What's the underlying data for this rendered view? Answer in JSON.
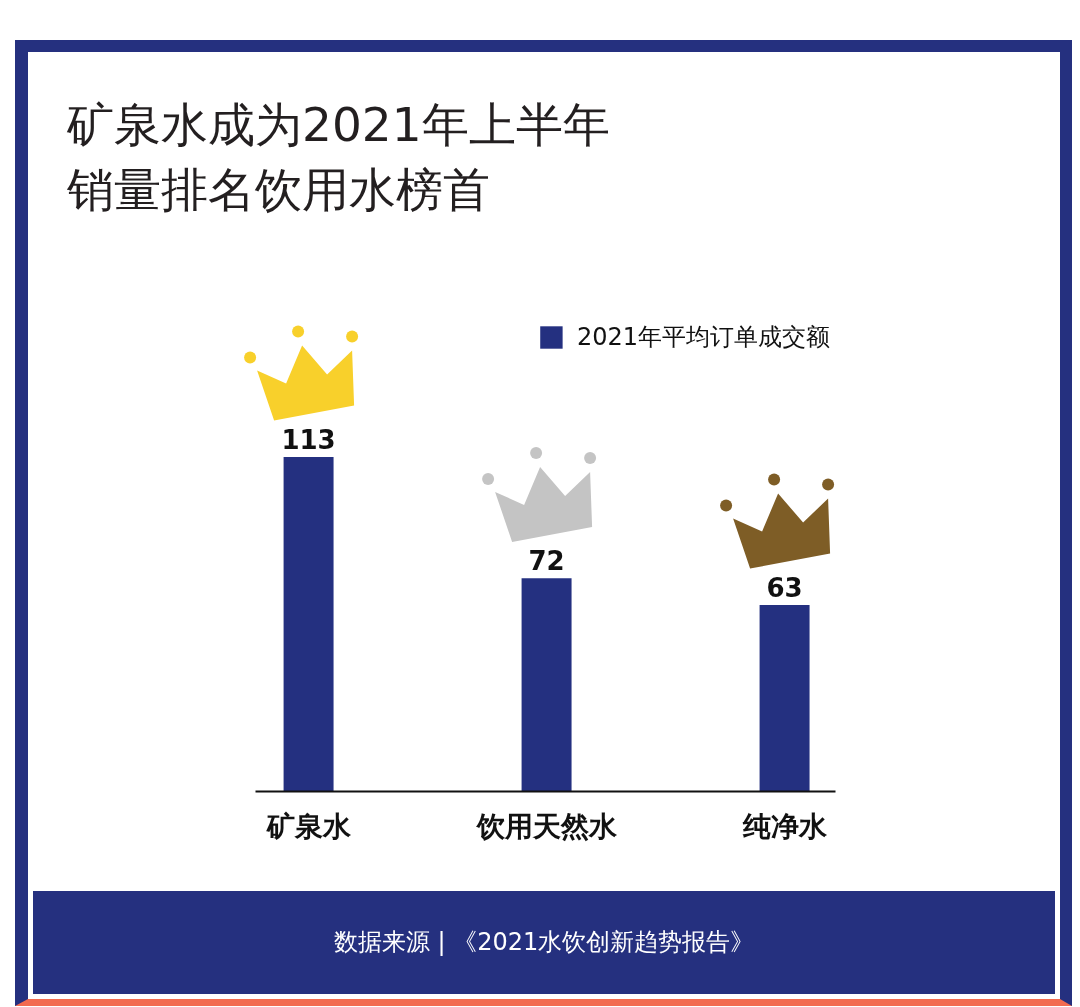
{
  "chart_data": {
    "type": "bar",
    "title": "矿泉水成为2021年上半年销量排名饮用水榜首",
    "categories": [
      "矿泉水",
      "饮用天然水",
      "纯净水"
    ],
    "series": [
      {
        "name": "2021年平均订单成交额",
        "color": "#243080",
        "values": [
          113,
          72,
          63
        ]
      }
    ],
    "data_labels": true,
    "legend": "top right",
    "tick_labels": "x",
    "annotations": [
      "数据来源 | 《2021水饮创新趋势报告》"
    ]
  }
}
